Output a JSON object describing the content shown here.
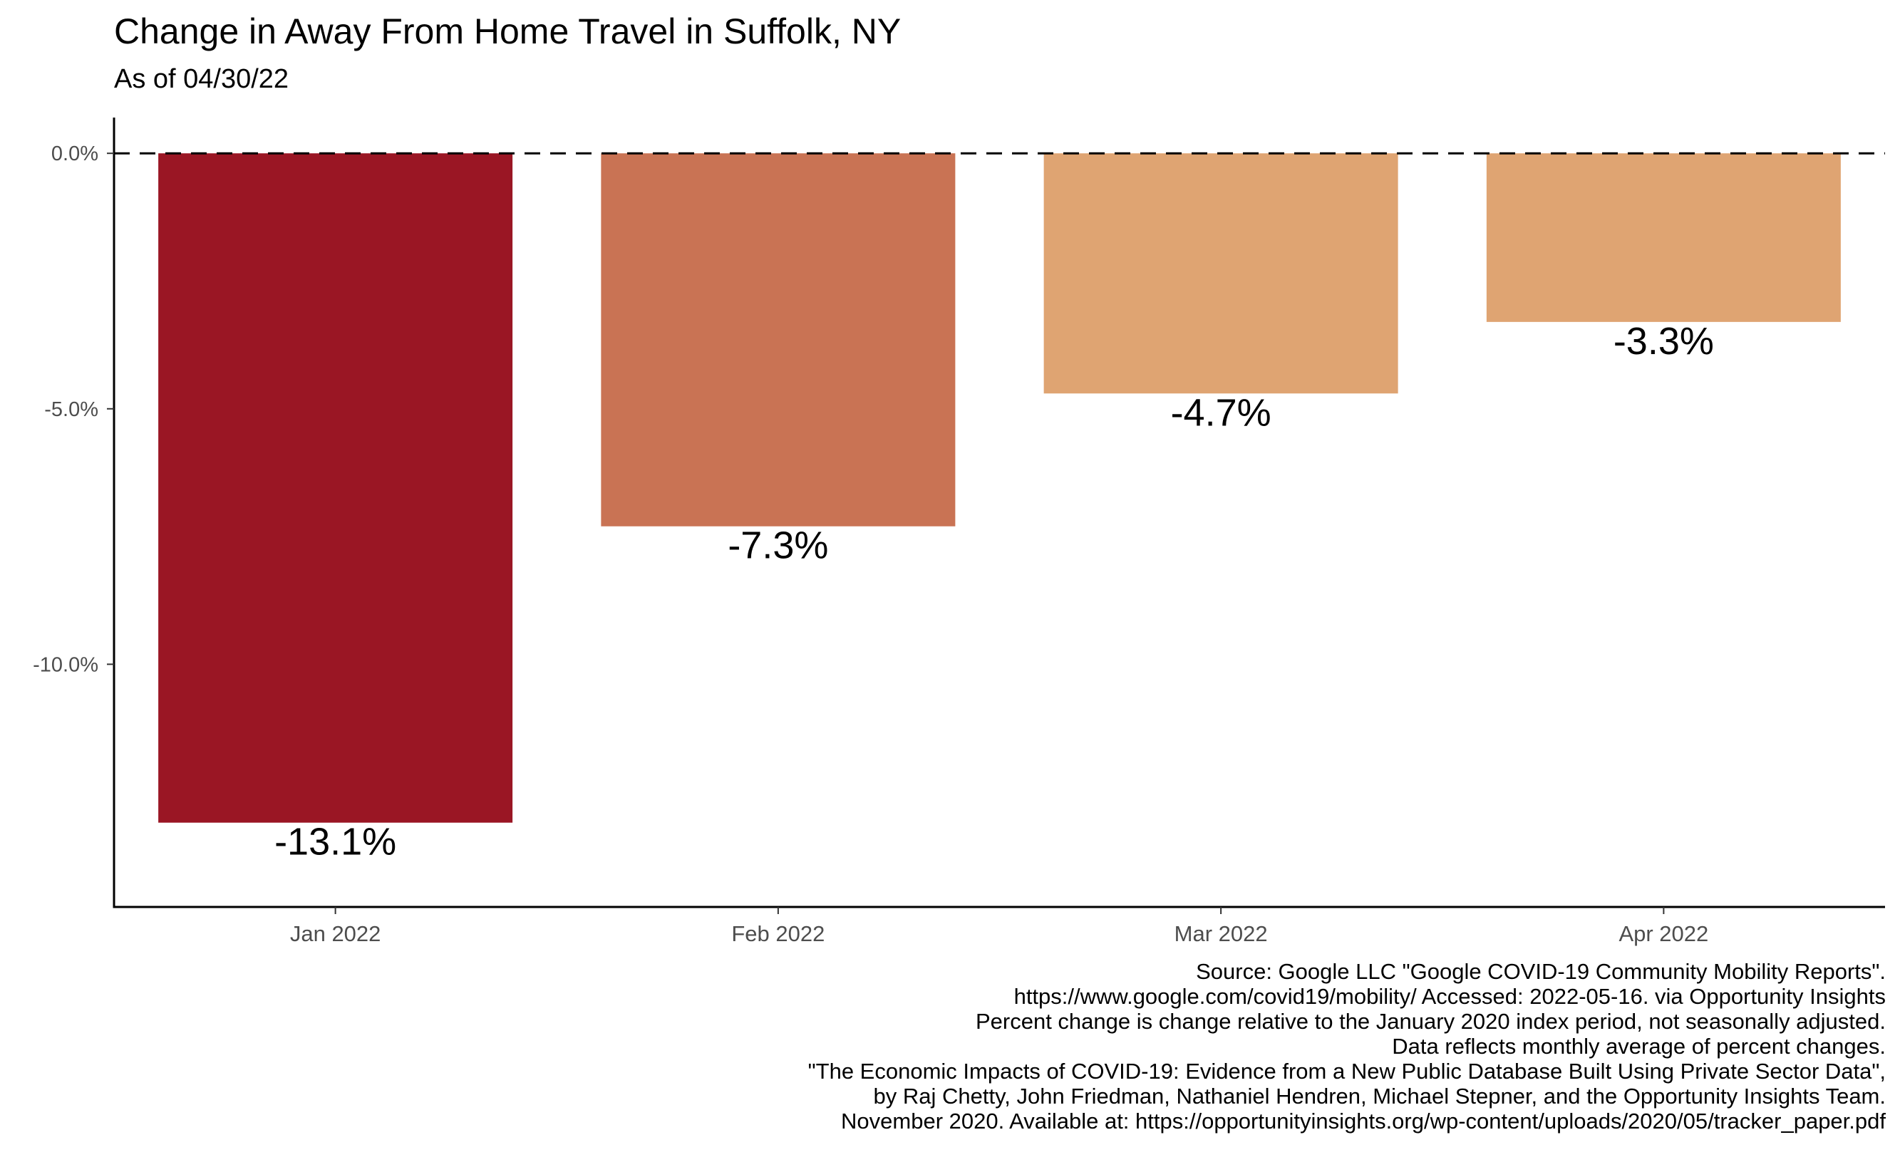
{
  "chart_data": {
    "type": "bar",
    "title": "Change in Away From Home Travel in Suffolk, NY",
    "subtitle": "As of 04/30/22",
    "xlabel": "",
    "ylabel": "",
    "categories": [
      "Jan 2022",
      "Feb 2022",
      "Mar 2022",
      "Apr 2022"
    ],
    "values": [
      -13.1,
      -7.3,
      -4.7,
      -3.3
    ],
    "data_labels": [
      "-13.1%",
      "-7.3%",
      "-4.7%",
      "-3.3%"
    ],
    "colors": [
      "#9A1624",
      "#C97354",
      "#DFA472",
      "#DFA472"
    ],
    "ylim": [
      -14.75,
      0.7
    ],
    "yticks": [
      0,
      -5,
      -10
    ],
    "ytick_labels": [
      "0.0%",
      "-5.0%",
      "-10.0%"
    ],
    "reference_line": {
      "y": 0,
      "style": "dashed"
    },
    "grid": false,
    "legend": "none"
  },
  "caption_lines": [
    "Source: Google LLC \"Google COVID-19 Community Mobility Reports\".",
    "https://www.google.com/covid19/mobility/ Accessed: 2022-05-16. via Opportunity Insights",
    "Percent change is change relative to the January 2020 index period, not seasonally adjusted.",
    "Data reflects monthly average of percent changes.",
    "\"The Economic Impacts of COVID-19: Evidence from a New Public Database Built Using Private Sector Data\",",
    "by Raj Chetty, John Friedman, Nathaniel Hendren, Michael Stepner, and the Opportunity Insights Team.",
    "November 2020. Available at: https://opportunityinsights.org/wp-content/uploads/2020/05/tracker_paper.pdf"
  ]
}
